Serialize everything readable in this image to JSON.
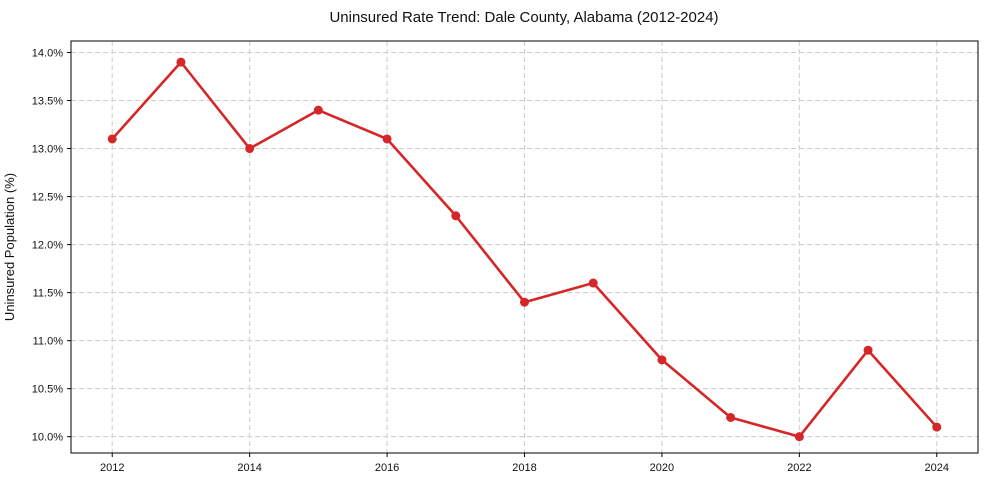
{
  "figure": {
    "title": "Uninsured Rate Trend: Dale County, Alabama (2012-2024)",
    "ylabel": "Uninsured Population (%)"
  },
  "chart_data": {
    "type": "line",
    "title": "Uninsured Rate Trend: Dale County, Alabama (2012-2024)",
    "xlabel": "",
    "ylabel": "Uninsured Population (%)",
    "x": [
      2012,
      2013,
      2014,
      2015,
      2016,
      2017,
      2018,
      2019,
      2020,
      2021,
      2022,
      2023,
      2024
    ],
    "series": [
      {
        "name": "Uninsured Population (%)",
        "values": [
          13.1,
          13.9,
          13.0,
          13.4,
          13.1,
          12.3,
          11.4,
          11.6,
          10.8,
          10.2,
          10.0,
          10.9,
          10.1
        ],
        "color": "#d62728",
        "marker": "circle"
      }
    ],
    "xlim": [
      2011.4,
      2024.6
    ],
    "ylim": [
      9.83,
      14.12
    ],
    "xticks": [
      2012,
      2014,
      2016,
      2018,
      2020,
      2022,
      2024
    ],
    "xtick_labels": [
      "2012",
      "2014",
      "2016",
      "2018",
      "2020",
      "2022",
      "2024"
    ],
    "yticks": [
      10.0,
      10.5,
      11.0,
      11.5,
      12.0,
      12.5,
      13.0,
      13.5,
      14.0
    ],
    "ytick_labels": [
      "10.0%",
      "10.5%",
      "11.0%",
      "11.5%",
      "12.0%",
      "12.5%",
      "13.0%",
      "13.5%",
      "14.0%"
    ],
    "grid": true,
    "grid_style": "dashed",
    "grid_color": "#cccccc",
    "spine_color": "#000000",
    "legend": "none"
  }
}
